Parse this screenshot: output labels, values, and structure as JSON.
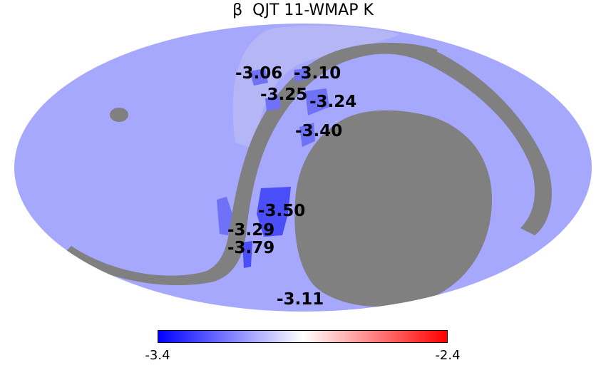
{
  "title": "β  QJT 11-WMAP K",
  "colors": {
    "background_fill": "#a6a8fe",
    "haze": "#b4b6f6",
    "mask": "#808080",
    "patch": "#6f72f6",
    "patch_dark": "#4a4ef8",
    "colorbar_low": "#0000ff",
    "colorbar_mid": "#ffffff",
    "colorbar_high": "#ff0000"
  },
  "regions": [
    {
      "id": "r1",
      "label": "-3.06"
    },
    {
      "id": "r2",
      "label": "-3.10"
    },
    {
      "id": "r3",
      "label": "-3.25"
    },
    {
      "id": "r4",
      "label": "-3.24"
    },
    {
      "id": "r5",
      "label": "-3.40"
    },
    {
      "id": "r6",
      "label": "-3.50"
    },
    {
      "id": "r7",
      "label": "-3.29"
    },
    {
      "id": "r8",
      "label": "-3.79"
    },
    {
      "id": "r9",
      "label": "-3.11"
    }
  ],
  "colorbar": {
    "min_label": "-3.4",
    "max_label": "-2.4"
  }
}
